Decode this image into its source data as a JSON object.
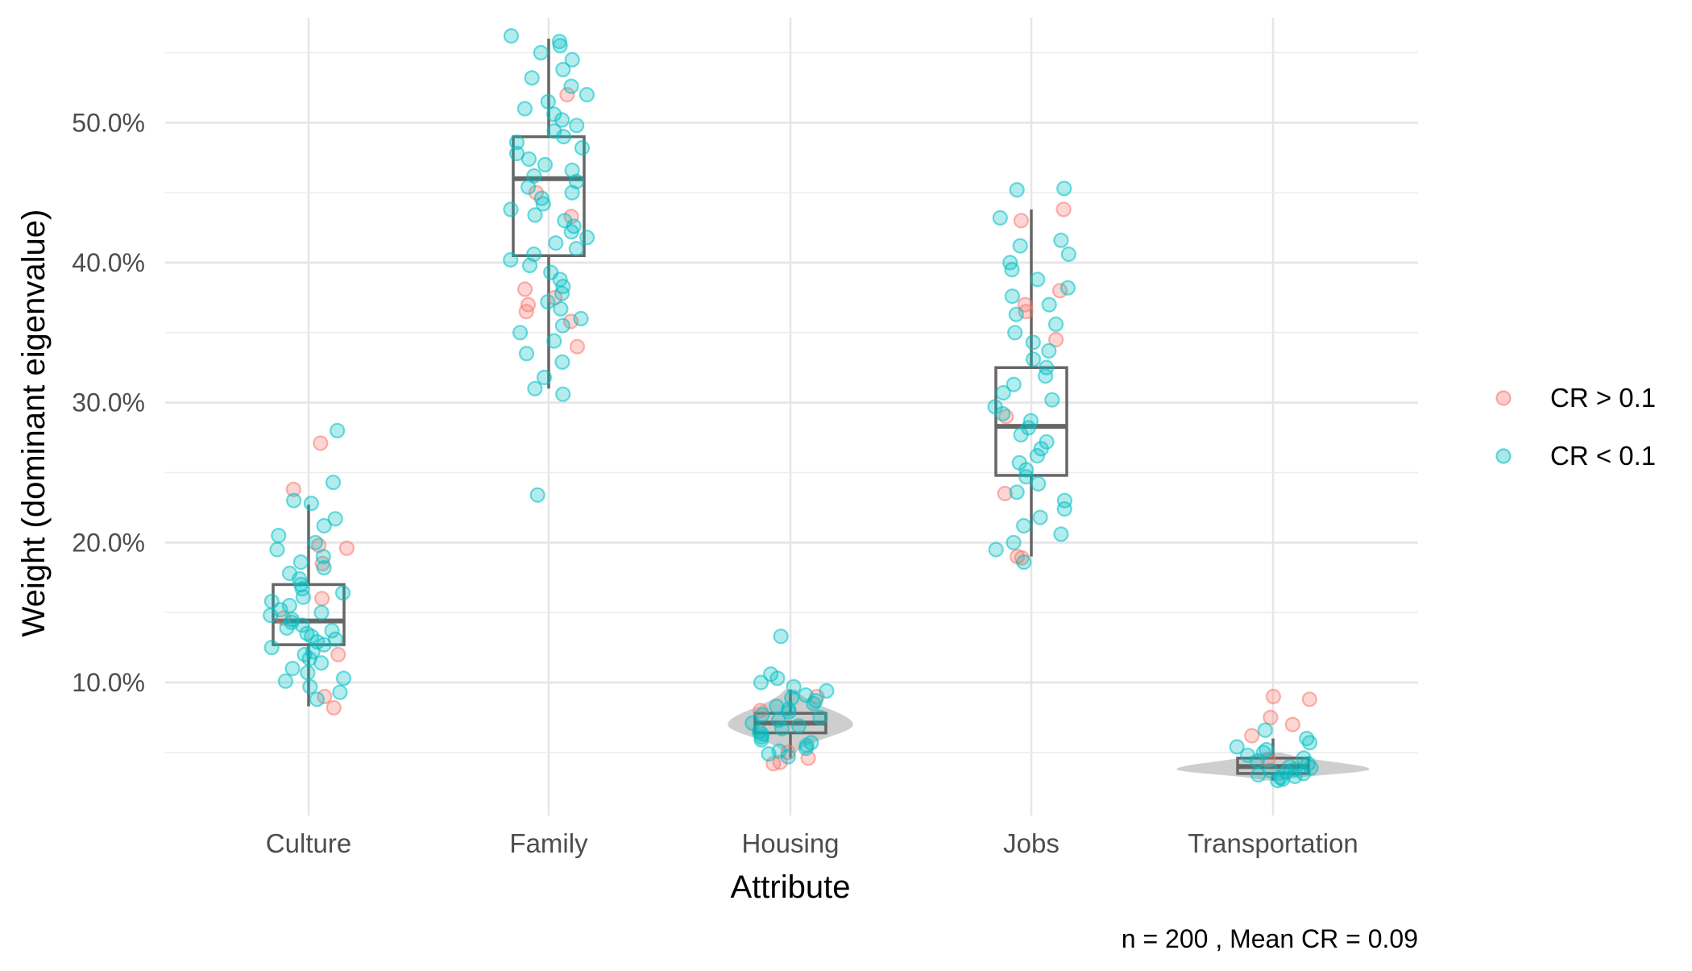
{
  "chart_data": {
    "type": "scatter",
    "subtype": "jittered boxplot with violin",
    "xlabel": "Attribute",
    "ylabel": "Weight (dominant eigenvalue)",
    "caption": "n = 200 , Mean CR = 0.09",
    "categories": [
      "Culture",
      "Family",
      "Housing",
      "Jobs",
      "Transportation"
    ],
    "y_ticks": [
      "10.0%",
      "20.0%",
      "30.0%",
      "40.0%",
      "50.0%"
    ],
    "y_tick_values": [
      10,
      20,
      30,
      40,
      50
    ],
    "ylim": [
      0.5,
      57.5
    ],
    "grid": true,
    "legend_position": "right",
    "legend": [
      {
        "label": "CR > 0.1",
        "color": "#F8766D"
      },
      {
        "label": "CR < 0.1",
        "color": "#00BFC4"
      }
    ],
    "box_color": "#666666",
    "violin_color": "#bdbdbd",
    "boxes": [
      {
        "category": "Culture",
        "lower_whisker": 8.3,
        "q1": 12.7,
        "median": 14.4,
        "q3": 17.0,
        "upper_whisker": 22.7
      },
      {
        "category": "Family",
        "lower_whisker": 31.0,
        "q1": 40.5,
        "median": 46.0,
        "q3": 49.0,
        "upper_whisker": 56.0
      },
      {
        "category": "Housing",
        "lower_whisker": 4.6,
        "q1": 6.4,
        "median": 7.1,
        "q3": 7.8,
        "upper_whisker": 9.5
      },
      {
        "category": "Jobs",
        "lower_whisker": 19.0,
        "q1": 24.8,
        "median": 28.3,
        "q3": 32.5,
        "upper_whisker": 43.8
      },
      {
        "category": "Transportation",
        "lower_whisker": 3.0,
        "q1": 3.5,
        "median": 4.0,
        "q3": 4.6,
        "upper_whisker": 6.0
      }
    ],
    "violins": [
      {
        "category": "Housing",
        "ymin": 5.0,
        "ymax": 9.5,
        "peak": 7.0,
        "half_width_frac": 0.26
      },
      {
        "category": "Transportation",
        "ymin": 3.0,
        "ymax": 5.0,
        "peak": 3.8,
        "half_width_frac": 0.4
      }
    ],
    "series": [
      {
        "name": "CR > 0.1",
        "points": [
          {
            "x": "Culture",
            "y": 27.1
          },
          {
            "x": "Culture",
            "y": 23.8
          },
          {
            "x": "Culture",
            "y": 19.8
          },
          {
            "x": "Culture",
            "y": 19.6
          },
          {
            "x": "Culture",
            "y": 18.5
          },
          {
            "x": "Culture",
            "y": 16.0
          },
          {
            "x": "Culture",
            "y": 14.6
          },
          {
            "x": "Culture",
            "y": 12.0
          },
          {
            "x": "Culture",
            "y": 9.0
          },
          {
            "x": "Culture",
            "y": 8.2
          },
          {
            "x": "Family",
            "y": 52.0
          },
          {
            "x": "Family",
            "y": 45.0
          },
          {
            "x": "Family",
            "y": 43.3
          },
          {
            "x": "Family",
            "y": 38.1
          },
          {
            "x": "Family",
            "y": 37.5
          },
          {
            "x": "Family",
            "y": 37.0
          },
          {
            "x": "Family",
            "y": 36.5
          },
          {
            "x": "Family",
            "y": 35.8
          },
          {
            "x": "Family",
            "y": 34.0
          },
          {
            "x": "Housing",
            "y": 9.0
          },
          {
            "x": "Housing",
            "y": 8.0
          },
          {
            "x": "Housing",
            "y": 5.0
          },
          {
            "x": "Housing",
            "y": 4.6
          },
          {
            "x": "Housing",
            "y": 4.3
          },
          {
            "x": "Housing",
            "y": 4.2
          },
          {
            "x": "Jobs",
            "y": 43.0
          },
          {
            "x": "Jobs",
            "y": 43.8
          },
          {
            "x": "Jobs",
            "y": 38.0
          },
          {
            "x": "Jobs",
            "y": 37.0
          },
          {
            "x": "Jobs",
            "y": 36.5
          },
          {
            "x": "Jobs",
            "y": 34.5
          },
          {
            "x": "Jobs",
            "y": 29.0
          },
          {
            "x": "Jobs",
            "y": 23.5
          },
          {
            "x": "Jobs",
            "y": 19.0
          },
          {
            "x": "Jobs",
            "y": 18.9
          },
          {
            "x": "Transportation",
            "y": 9.0
          },
          {
            "x": "Transportation",
            "y": 8.8
          },
          {
            "x": "Transportation",
            "y": 7.5
          },
          {
            "x": "Transportation",
            "y": 7.0
          },
          {
            "x": "Transportation",
            "y": 6.2
          },
          {
            "x": "Transportation",
            "y": 4.5
          }
        ]
      },
      {
        "name": "CR < 0.1",
        "points": [
          {
            "x": "Culture",
            "y": 28.0
          },
          {
            "x": "Culture",
            "y": 24.3
          },
          {
            "x": "Culture",
            "y": 23.0
          },
          {
            "x": "Culture",
            "y": 22.8
          },
          {
            "x": "Culture",
            "y": 21.7
          },
          {
            "x": "Culture",
            "y": 21.2
          },
          {
            "x": "Culture",
            "y": 20.5
          },
          {
            "x": "Culture",
            "y": 20.0
          },
          {
            "x": "Culture",
            "y": 19.5
          },
          {
            "x": "Culture",
            "y": 19.0
          },
          {
            "x": "Culture",
            "y": 18.6
          },
          {
            "x": "Culture",
            "y": 18.2
          },
          {
            "x": "Culture",
            "y": 17.8
          },
          {
            "x": "Culture",
            "y": 17.4
          },
          {
            "x": "Culture",
            "y": 17.0
          },
          {
            "x": "Culture",
            "y": 16.7
          },
          {
            "x": "Culture",
            "y": 16.4
          },
          {
            "x": "Culture",
            "y": 16.1
          },
          {
            "x": "Culture",
            "y": 15.8
          },
          {
            "x": "Culture",
            "y": 15.5
          },
          {
            "x": "Culture",
            "y": 15.2
          },
          {
            "x": "Culture",
            "y": 15.0
          },
          {
            "x": "Culture",
            "y": 14.8
          },
          {
            "x": "Culture",
            "y": 14.5
          },
          {
            "x": "Culture",
            "y": 14.3
          },
          {
            "x": "Culture",
            "y": 14.1
          },
          {
            "x": "Culture",
            "y": 13.9
          },
          {
            "x": "Culture",
            "y": 13.7
          },
          {
            "x": "Culture",
            "y": 13.5
          },
          {
            "x": "Culture",
            "y": 13.3
          },
          {
            "x": "Culture",
            "y": 13.1
          },
          {
            "x": "Culture",
            "y": 12.9
          },
          {
            "x": "Culture",
            "y": 12.7
          },
          {
            "x": "Culture",
            "y": 12.5
          },
          {
            "x": "Culture",
            "y": 12.2
          },
          {
            "x": "Culture",
            "y": 12.0
          },
          {
            "x": "Culture",
            "y": 11.7
          },
          {
            "x": "Culture",
            "y": 11.4
          },
          {
            "x": "Culture",
            "y": 11.0
          },
          {
            "x": "Culture",
            "y": 10.7
          },
          {
            "x": "Culture",
            "y": 10.3
          },
          {
            "x": "Culture",
            "y": 10.1
          },
          {
            "x": "Culture",
            "y": 9.7
          },
          {
            "x": "Culture",
            "y": 9.3
          },
          {
            "x": "Culture",
            "y": 8.8
          },
          {
            "x": "Family",
            "y": 56.2
          },
          {
            "x": "Family",
            "y": 55.8
          },
          {
            "x": "Family",
            "y": 55.5
          },
          {
            "x": "Family",
            "y": 55.0
          },
          {
            "x": "Family",
            "y": 54.5
          },
          {
            "x": "Family",
            "y": 53.8
          },
          {
            "x": "Family",
            "y": 53.2
          },
          {
            "x": "Family",
            "y": 52.6
          },
          {
            "x": "Family",
            "y": 52.0
          },
          {
            "x": "Family",
            "y": 51.5
          },
          {
            "x": "Family",
            "y": 51.0
          },
          {
            "x": "Family",
            "y": 50.6
          },
          {
            "x": "Family",
            "y": 50.2
          },
          {
            "x": "Family",
            "y": 49.8
          },
          {
            "x": "Family",
            "y": 49.4
          },
          {
            "x": "Family",
            "y": 49.0
          },
          {
            "x": "Family",
            "y": 48.6
          },
          {
            "x": "Family",
            "y": 48.2
          },
          {
            "x": "Family",
            "y": 47.8
          },
          {
            "x": "Family",
            "y": 47.4
          },
          {
            "x": "Family",
            "y": 47.0
          },
          {
            "x": "Family",
            "y": 46.6
          },
          {
            "x": "Family",
            "y": 46.2
          },
          {
            "x": "Family",
            "y": 45.8
          },
          {
            "x": "Family",
            "y": 45.4
          },
          {
            "x": "Family",
            "y": 45.0
          },
          {
            "x": "Family",
            "y": 44.6
          },
          {
            "x": "Family",
            "y": 44.2
          },
          {
            "x": "Family",
            "y": 43.8
          },
          {
            "x": "Family",
            "y": 43.4
          },
          {
            "x": "Family",
            "y": 43.0
          },
          {
            "x": "Family",
            "y": 42.6
          },
          {
            "x": "Family",
            "y": 42.2
          },
          {
            "x": "Family",
            "y": 41.8
          },
          {
            "x": "Family",
            "y": 41.4
          },
          {
            "x": "Family",
            "y": 41.0
          },
          {
            "x": "Family",
            "y": 40.6
          },
          {
            "x": "Family",
            "y": 40.2
          },
          {
            "x": "Family",
            "y": 39.8
          },
          {
            "x": "Family",
            "y": 39.3
          },
          {
            "x": "Family",
            "y": 38.8
          },
          {
            "x": "Family",
            "y": 38.3
          },
          {
            "x": "Family",
            "y": 37.8
          },
          {
            "x": "Family",
            "y": 37.2
          },
          {
            "x": "Family",
            "y": 36.7
          },
          {
            "x": "Family",
            "y": 36.0
          },
          {
            "x": "Family",
            "y": 35.5
          },
          {
            "x": "Family",
            "y": 35.0
          },
          {
            "x": "Family",
            "y": 34.4
          },
          {
            "x": "Family",
            "y": 33.5
          },
          {
            "x": "Family",
            "y": 32.9
          },
          {
            "x": "Family",
            "y": 31.8
          },
          {
            "x": "Family",
            "y": 31.0
          },
          {
            "x": "Family",
            "y": 30.6
          },
          {
            "x": "Family",
            "y": 23.4
          },
          {
            "x": "Housing",
            "y": 13.3
          },
          {
            "x": "Housing",
            "y": 10.6
          },
          {
            "x": "Housing",
            "y": 10.3
          },
          {
            "x": "Housing",
            "y": 10.0
          },
          {
            "x": "Housing",
            "y": 9.7
          },
          {
            "x": "Housing",
            "y": 9.4
          },
          {
            "x": "Housing",
            "y": 9.1
          },
          {
            "x": "Housing",
            "y": 8.9
          },
          {
            "x": "Housing",
            "y": 8.7
          },
          {
            "x": "Housing",
            "y": 8.5
          },
          {
            "x": "Housing",
            "y": 8.3
          },
          {
            "x": "Housing",
            "y": 8.1
          },
          {
            "x": "Housing",
            "y": 7.9
          },
          {
            "x": "Housing",
            "y": 7.7
          },
          {
            "x": "Housing",
            "y": 7.5
          },
          {
            "x": "Housing",
            "y": 7.3
          },
          {
            "x": "Housing",
            "y": 7.1
          },
          {
            "x": "Housing",
            "y": 6.9
          },
          {
            "x": "Housing",
            "y": 6.7
          },
          {
            "x": "Housing",
            "y": 6.5
          },
          {
            "x": "Housing",
            "y": 6.3
          },
          {
            "x": "Housing",
            "y": 6.1
          },
          {
            "x": "Housing",
            "y": 5.9
          },
          {
            "x": "Housing",
            "y": 5.7
          },
          {
            "x": "Housing",
            "y": 5.5
          },
          {
            "x": "Housing",
            "y": 5.3
          },
          {
            "x": "Housing",
            "y": 5.1
          },
          {
            "x": "Housing",
            "y": 4.9
          },
          {
            "x": "Housing",
            "y": 4.7
          },
          {
            "x": "Jobs",
            "y": 45.3
          },
          {
            "x": "Jobs",
            "y": 45.2
          },
          {
            "x": "Jobs",
            "y": 43.2
          },
          {
            "x": "Jobs",
            "y": 41.6
          },
          {
            "x": "Jobs",
            "y": 41.2
          },
          {
            "x": "Jobs",
            "y": 40.6
          },
          {
            "x": "Jobs",
            "y": 40.0
          },
          {
            "x": "Jobs",
            "y": 39.5
          },
          {
            "x": "Jobs",
            "y": 38.8
          },
          {
            "x": "Jobs",
            "y": 38.2
          },
          {
            "x": "Jobs",
            "y": 37.6
          },
          {
            "x": "Jobs",
            "y": 37.0
          },
          {
            "x": "Jobs",
            "y": 36.3
          },
          {
            "x": "Jobs",
            "y": 35.6
          },
          {
            "x": "Jobs",
            "y": 35.0
          },
          {
            "x": "Jobs",
            "y": 34.3
          },
          {
            "x": "Jobs",
            "y": 33.7
          },
          {
            "x": "Jobs",
            "y": 33.1
          },
          {
            "x": "Jobs",
            "y": 32.5
          },
          {
            "x": "Jobs",
            "y": 31.9
          },
          {
            "x": "Jobs",
            "y": 31.3
          },
          {
            "x": "Jobs",
            "y": 30.7
          },
          {
            "x": "Jobs",
            "y": 30.2
          },
          {
            "x": "Jobs",
            "y": 29.7
          },
          {
            "x": "Jobs",
            "y": 29.2
          },
          {
            "x": "Jobs",
            "y": 28.7
          },
          {
            "x": "Jobs",
            "y": 28.2
          },
          {
            "x": "Jobs",
            "y": 27.7
          },
          {
            "x": "Jobs",
            "y": 27.2
          },
          {
            "x": "Jobs",
            "y": 26.7
          },
          {
            "x": "Jobs",
            "y": 26.2
          },
          {
            "x": "Jobs",
            "y": 25.7
          },
          {
            "x": "Jobs",
            "y": 25.2
          },
          {
            "x": "Jobs",
            "y": 24.7
          },
          {
            "x": "Jobs",
            "y": 24.2
          },
          {
            "x": "Jobs",
            "y": 23.6
          },
          {
            "x": "Jobs",
            "y": 23.0
          },
          {
            "x": "Jobs",
            "y": 22.4
          },
          {
            "x": "Jobs",
            "y": 21.8
          },
          {
            "x": "Jobs",
            "y": 21.2
          },
          {
            "x": "Jobs",
            "y": 20.6
          },
          {
            "x": "Jobs",
            "y": 20.0
          },
          {
            "x": "Jobs",
            "y": 19.5
          },
          {
            "x": "Jobs",
            "y": 18.6
          },
          {
            "x": "Transportation",
            "y": 6.6
          },
          {
            "x": "Transportation",
            "y": 6.0
          },
          {
            "x": "Transportation",
            "y": 5.7
          },
          {
            "x": "Transportation",
            "y": 5.4
          },
          {
            "x": "Transportation",
            "y": 5.2
          },
          {
            "x": "Transportation",
            "y": 5.0
          },
          {
            "x": "Transportation",
            "y": 4.8
          },
          {
            "x": "Transportation",
            "y": 4.6
          },
          {
            "x": "Transportation",
            "y": 4.4
          },
          {
            "x": "Transportation",
            "y": 4.2
          },
          {
            "x": "Transportation",
            "y": 4.0
          },
          {
            "x": "Transportation",
            "y": 3.9
          },
          {
            "x": "Transportation",
            "y": 3.8
          },
          {
            "x": "Transportation",
            "y": 3.7
          },
          {
            "x": "Transportation",
            "y": 3.6
          },
          {
            "x": "Transportation",
            "y": 3.5
          },
          {
            "x": "Transportation",
            "y": 3.4
          },
          {
            "x": "Transportation",
            "y": 3.3
          },
          {
            "x": "Transportation",
            "y": 3.2
          },
          {
            "x": "Transportation",
            "y": 3.1
          },
          {
            "x": "Transportation",
            "y": 3.0
          }
        ]
      }
    ]
  }
}
